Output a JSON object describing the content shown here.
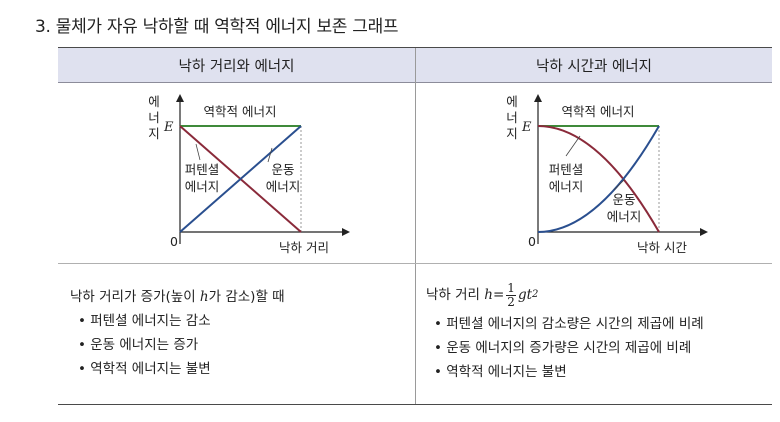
{
  "title": "3. 물체가 자유 낙하할 때 역학적 에너지 보존 그래프",
  "columns": [
    "낙하 거리와 에너지",
    "낙하 시간과 에너지"
  ],
  "left_chart": {
    "ylabel": [
      "에",
      "너",
      "지"
    ],
    "xlabel": "낙하 거리",
    "origin": "0",
    "e_label": "E",
    "mechanical": "역학적 에너지",
    "potential": [
      "퍼텐셜",
      "에너지"
    ],
    "kinetic": [
      "운동",
      "에너지"
    ]
  },
  "right_chart": {
    "ylabel": [
      "에",
      "너",
      "지"
    ],
    "xlabel": "낙하 시간",
    "origin": "0",
    "e_label": "E",
    "mechanical": "역학적 에너지",
    "potential": [
      "퍼텐셜",
      "에너지"
    ],
    "kinetic": [
      "운동",
      "에너지"
    ]
  },
  "left_note": {
    "intro_a": "낙하 거리가 증가(높이 ",
    "intro_h": "h",
    "intro_b": "가 감소)할 때",
    "bullets": [
      "• 퍼텐셜 에너지는 감소",
      "• 운동 에너지는 증가",
      "• 역학적 에너지는 불변"
    ]
  },
  "right_note": {
    "intro": "낙하 거리",
    "formula_h": "h",
    "formula_eq": "=",
    "frac_num": "1",
    "frac_den": "2",
    "formula_tail": "gt",
    "formula_exp": "2",
    "bullets": [
      "• 퍼텐셜 에너지의 감소량은 시간의 제곱에 비례",
      "• 운동 에너지의 증가량은 시간의 제곱에 비례",
      "• 역학적 에너지는 불변"
    ]
  },
  "colors": {
    "mechanical": "#3f8a3a",
    "potential": "#8a2a3a",
    "kinetic": "#2a4f8f",
    "header_bg": "#dfe1ef"
  }
}
